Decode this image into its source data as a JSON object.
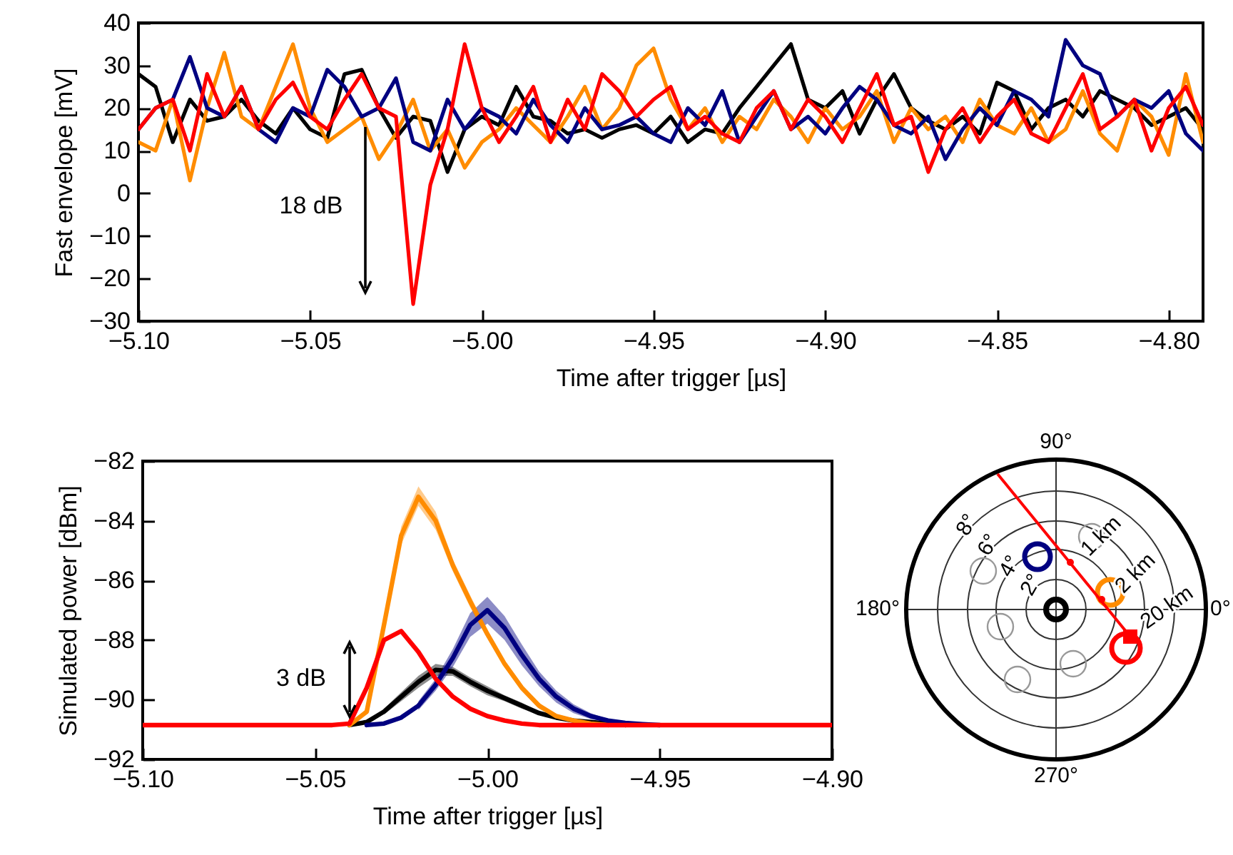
{
  "chart_data": [
    {
      "type": "line",
      "xlabel": "Time after trigger [µs]",
      "ylabel": "Fast envelope [mV]",
      "xlim": [
        -5.1,
        -4.79
      ],
      "ylim": [
        -30,
        40
      ],
      "xticks": [
        {
          "value": -5.1,
          "label": "−5.10"
        },
        -5.05,
        {
          "value": -5,
          "label": "−5.00"
        },
        -4.95,
        {
          "value": -4.9,
          "label": "−4.90"
        },
        -4.85,
        {
          "value": -4.8,
          "label": "−4.80"
        }
      ],
      "yticks": [
        -30,
        -20,
        -10,
        0,
        10,
        20,
        30,
        40
      ],
      "annotations": [
        "18 dB"
      ],
      "x": [
        -5.1,
        -5.095,
        -5.09,
        -5.085,
        -5.08,
        -5.075,
        -5.07,
        -5.065,
        -5.06,
        -5.055,
        -5.05,
        -5.045,
        -5.04,
        -5.035,
        -5.03,
        -5.025,
        -5.02,
        -5.015,
        -5.01,
        -5.005,
        -5,
        -4.995,
        -4.99,
        -4.985,
        -4.98,
        -4.975,
        -4.97,
        -4.965,
        -4.96,
        -4.955,
        -4.95,
        -4.945,
        -4.94,
        -4.935,
        -4.93,
        -4.925,
        -4.92,
        -4.915,
        -4.91,
        -4.905,
        -4.9,
        -4.895,
        -4.89,
        -4.885,
        -4.88,
        -4.875,
        -4.87,
        -4.865,
        -4.86,
        -4.855,
        -4.85,
        -4.845,
        -4.84,
        -4.835,
        -4.83,
        -4.825,
        -4.82,
        -4.815,
        -4.81,
        -4.805,
        -4.8,
        -4.795,
        -4.79
      ],
      "series": [
        {
          "color": "#000000",
          "values": [
            28,
            25,
            12,
            22,
            17,
            18,
            22,
            17,
            14,
            20,
            15,
            13,
            28,
            29,
            20,
            13,
            18,
            17,
            5,
            15,
            18,
            16,
            25,
            18,
            17,
            14,
            15,
            13,
            15,
            16,
            14,
            18,
            12,
            15,
            14,
            20,
            25,
            30,
            35,
            22,
            20,
            24,
            14,
            22,
            28,
            20,
            17,
            15,
            18,
            14,
            26,
            24,
            15,
            20,
            22,
            18,
            24,
            22,
            20,
            16,
            18,
            20,
            15
          ]
        },
        {
          "color": "#ff8c00",
          "values": [
            12,
            10,
            22,
            3,
            20,
            33,
            18,
            15,
            25,
            35,
            20,
            12,
            15,
            18,
            8,
            14,
            22,
            10,
            15,
            6,
            12,
            15,
            20,
            16,
            12,
            18,
            25,
            15,
            20,
            30,
            34,
            22,
            15,
            20,
            12,
            18,
            15,
            22,
            18,
            12,
            20,
            15,
            18,
            24,
            12,
            20,
            15,
            18,
            12,
            22,
            16,
            14,
            20,
            12,
            15,
            24,
            14,
            10,
            22,
            18,
            9,
            28,
            12
          ]
        },
        {
          "color": "#000080",
          "values": [
            15,
            20,
            22,
            32,
            20,
            18,
            25,
            15,
            12,
            20,
            18,
            29,
            25,
            18,
            20,
            27,
            12,
            10,
            22,
            15,
            20,
            18,
            14,
            22,
            16,
            12,
            20,
            15,
            16,
            18,
            14,
            12,
            20,
            16,
            24,
            12,
            18,
            24,
            15,
            18,
            14,
            20,
            25,
            22,
            16,
            14,
            18,
            8,
            15,
            20,
            16,
            24,
            22,
            18,
            36,
            30,
            28,
            18,
            22,
            20,
            24,
            14,
            10
          ]
        },
        {
          "color": "#ff0000",
          "values": [
            15,
            20,
            22,
            10,
            28,
            18,
            25,
            15,
            22,
            26,
            18,
            15,
            22,
            28,
            20,
            18,
            -26,
            2,
            15,
            35,
            20,
            12,
            18,
            25,
            12,
            22,
            15,
            28,
            24,
            18,
            22,
            25,
            15,
            18,
            14,
            12,
            20,
            24,
            15,
            22,
            18,
            12,
            20,
            28,
            16,
            18,
            5,
            15,
            20,
            12,
            18,
            22,
            14,
            12,
            20,
            28,
            15,
            18,
            22,
            10,
            20,
            25,
            16
          ]
        }
      ]
    },
    {
      "type": "line",
      "xlabel": "Time after trigger [µs]",
      "ylabel": "Simulated power [dBm]",
      "xlim": [
        -5.1,
        -4.9
      ],
      "ylim": [
        -92,
        -82
      ],
      "xticks": [
        {
          "value": -5.1,
          "label": "−5.10"
        },
        -5.05,
        {
          "value": -5,
          "label": "−5.00"
        },
        -4.95,
        {
          "value": -4.9,
          "label": "−4.90"
        }
      ],
      "yticks": [
        -92,
        -90,
        -88,
        -86,
        -84,
        -82
      ],
      "annotations": [
        "3 dB"
      ],
      "x": [
        -5.1,
        -5.095,
        -5.09,
        -5.085,
        -5.08,
        -5.075,
        -5.07,
        -5.065,
        -5.06,
        -5.055,
        -5.05,
        -5.045,
        -5.04,
        -5.035,
        -5.03,
        -5.025,
        -5.02,
        -5.015,
        -5.01,
        -5.005,
        -5,
        -4.995,
        -4.99,
        -4.985,
        -4.98,
        -4.975,
        -4.97,
        -4.965,
        -4.96,
        -4.955,
        -4.95,
        -4.945,
        -4.94,
        -4.935,
        -4.93,
        -4.925,
        -4.92,
        -4.915,
        -4.91,
        -4.905,
        -4.9
      ],
      "series": [
        {
          "color": "#000000",
          "values": [
            null,
            null,
            null,
            null,
            null,
            null,
            null,
            null,
            null,
            null,
            null,
            null,
            -90.85,
            -90.75,
            -90.4,
            -89.9,
            -89.4,
            -89.0,
            -89.05,
            -89.4,
            -89.7,
            -89.95,
            -90.2,
            -90.45,
            -90.6,
            -90.7,
            -90.75,
            -90.8,
            -90.85,
            null,
            null,
            null,
            null,
            null,
            null,
            null,
            null,
            null,
            null,
            null,
            null
          ],
          "lower": [
            null,
            null,
            null,
            null,
            null,
            null,
            null,
            null,
            null,
            null,
            null,
            null,
            null,
            null,
            -90.5,
            -90.05,
            -89.6,
            -89.2,
            -89.2,
            -89.55,
            -89.85,
            -90.05,
            -90.3,
            -90.5,
            -90.65,
            -90.75,
            null,
            null,
            null,
            null,
            null,
            null,
            null,
            null,
            null,
            null,
            null,
            null,
            null,
            null,
            null
          ],
          "upper": [
            null,
            null,
            null,
            null,
            null,
            null,
            null,
            null,
            null,
            null,
            null,
            null,
            null,
            null,
            -90.3,
            -89.75,
            -89.2,
            -88.8,
            -88.9,
            -89.25,
            -89.55,
            -89.85,
            -90.1,
            -90.4,
            -90.55,
            -90.65,
            null,
            null,
            null,
            null,
            null,
            null,
            null,
            null,
            null,
            null,
            null,
            null,
            null,
            null,
            null
          ]
        },
        {
          "color": "#ff8c00",
          "values": [
            null,
            null,
            null,
            null,
            null,
            null,
            null,
            null,
            null,
            null,
            null,
            null,
            -90.85,
            -90.4,
            -87.5,
            -84.5,
            -83.2,
            -84.0,
            -85.5,
            -86.7,
            -87.8,
            -88.8,
            -89.6,
            -90.2,
            -90.55,
            -90.7,
            -90.8,
            -90.85,
            null,
            null,
            null,
            null,
            null,
            null,
            null,
            null,
            null,
            null,
            null,
            null,
            null
          ],
          "lower": [
            null,
            null,
            null,
            null,
            null,
            null,
            null,
            null,
            null,
            null,
            null,
            null,
            null,
            -90.5,
            -87.7,
            -84.8,
            -83.5,
            -84.3,
            -85.7,
            -86.9,
            -87.95,
            -88.9,
            -89.7,
            -90.3,
            -90.6,
            null,
            null,
            null,
            null,
            null,
            null,
            null,
            null,
            null,
            null,
            null,
            null,
            null,
            null,
            null,
            null
          ],
          "upper": [
            null,
            null,
            null,
            null,
            null,
            null,
            null,
            null,
            null,
            null,
            null,
            null,
            null,
            -90.3,
            -87.3,
            -84.2,
            -82.85,
            -83.7,
            -85.3,
            -86.5,
            -87.65,
            -88.7,
            -89.5,
            -90.1,
            -90.5,
            null,
            null,
            null,
            null,
            null,
            null,
            null,
            null,
            null,
            null,
            null,
            null,
            null,
            null,
            null,
            null
          ]
        },
        {
          "color": "#000080",
          "values": [
            null,
            null,
            null,
            null,
            null,
            null,
            null,
            null,
            null,
            null,
            null,
            null,
            null,
            -90.85,
            -90.8,
            -90.6,
            -90.2,
            -89.5,
            -88.6,
            -87.5,
            -87.0,
            -87.6,
            -88.5,
            -89.3,
            -89.9,
            -90.3,
            -90.55,
            -90.7,
            -90.78,
            -90.82,
            -90.85,
            null,
            null,
            null,
            null,
            null,
            null,
            null,
            null,
            null,
            null
          ],
          "lower": [
            null,
            null,
            null,
            null,
            null,
            null,
            null,
            null,
            null,
            null,
            null,
            null,
            null,
            null,
            null,
            null,
            -90.35,
            -89.7,
            -88.9,
            -87.9,
            -87.45,
            -88.0,
            -88.85,
            -89.55,
            -90.1,
            -90.45,
            -90.65,
            -90.75,
            null,
            null,
            null,
            null,
            null,
            null,
            null,
            null,
            null,
            null,
            null,
            null,
            null
          ],
          "upper": [
            null,
            null,
            null,
            null,
            null,
            null,
            null,
            null,
            null,
            null,
            null,
            null,
            null,
            null,
            null,
            null,
            -90.05,
            -89.3,
            -88.3,
            -87.1,
            -86.55,
            -87.2,
            -88.15,
            -89.05,
            -89.7,
            -90.15,
            -90.45,
            -90.65,
            null,
            null,
            null,
            null,
            null,
            null,
            null,
            null,
            null,
            null,
            null,
            null,
            null
          ]
        },
        {
          "color": "#ff0000",
          "values": [
            -90.85,
            -90.85,
            -90.85,
            -90.85,
            -90.85,
            -90.85,
            -90.85,
            -90.85,
            -90.85,
            -90.85,
            -90.85,
            -90.85,
            -90.8,
            -89.6,
            -88.0,
            -87.7,
            -88.4,
            -89.3,
            -89.9,
            -90.3,
            -90.55,
            -90.7,
            -90.8,
            -90.85,
            -90.85,
            -90.85,
            -90.85,
            -90.85,
            -90.85,
            -90.85,
            -90.85,
            -90.85,
            -90.85,
            -90.85,
            -90.85,
            -90.85,
            -90.85,
            -90.85,
            -90.85,
            -90.85,
            -90.85
          ]
        }
      ]
    },
    {
      "type": "other",
      "annotations": [
        "90°",
        "180°",
        "270°",
        "0°",
        "2°",
        "4°",
        "6°",
        "8°",
        "1 km",
        "2 km",
        "20 km"
      ]
    }
  ]
}
